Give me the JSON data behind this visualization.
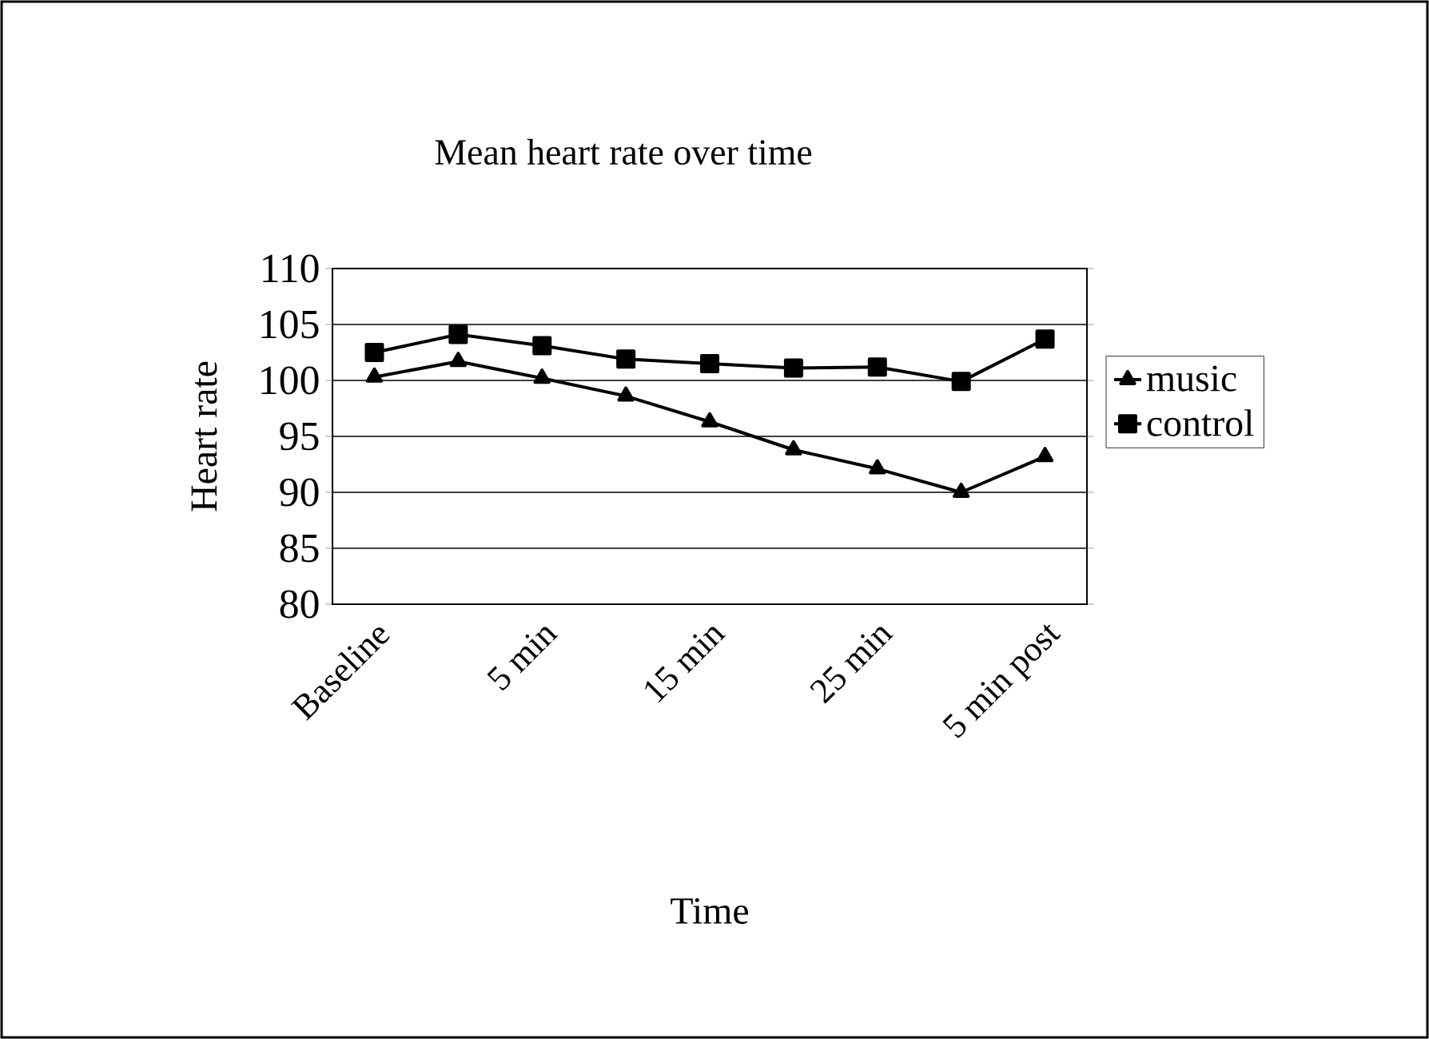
{
  "chart_data": {
    "type": "line",
    "title": "Mean heart rate over time",
    "xlabel": "Time",
    "ylabel": "Heart rate",
    "categories": [
      "Baseline",
      null,
      "5 min",
      null,
      "15 min",
      null,
      "25 min",
      null,
      "5 min post"
    ],
    "series": [
      {
        "name": "music",
        "color": "#000000",
        "marker": "triangle",
        "values": [
          100.3,
          101.7,
          100.2,
          98.6,
          96.3,
          93.8,
          92.1,
          90.0,
          93.2
        ]
      },
      {
        "name": "control",
        "color": "#000000",
        "marker": "square",
        "values": [
          102.5,
          104.1,
          103.1,
          101.9,
          101.5,
          101.1,
          101.2,
          99.9,
          103.7
        ]
      }
    ],
    "ylim": [
      80,
      110
    ],
    "yticks": [
      80,
      85,
      90,
      95,
      100,
      105,
      110
    ],
    "grid": "y",
    "legend": "right",
    "line_style": "solid"
  }
}
